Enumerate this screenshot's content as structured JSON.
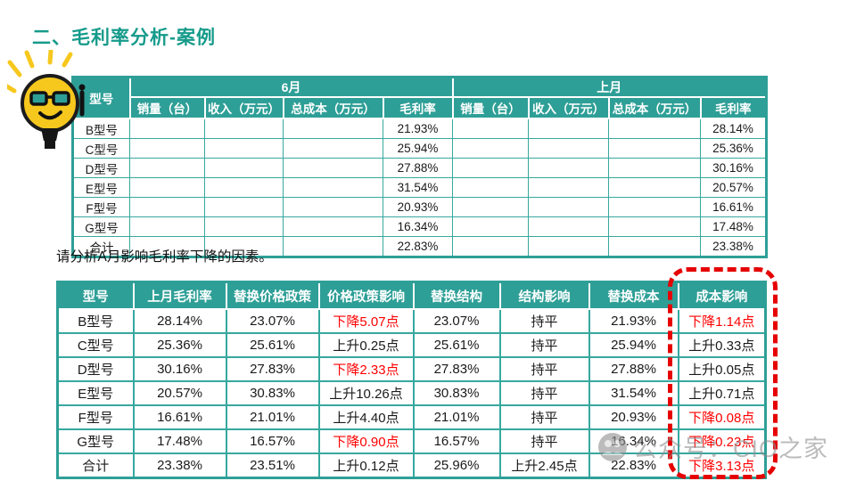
{
  "slide": {
    "title": "二、毛利率分析-案例",
    "prompt": "请分析A月影响毛利率下降的因素。",
    "watermark": "公众号：CIO之家"
  },
  "colors": {
    "accent_teal": "#169b8b",
    "header_teal": "#2e9f97",
    "grid_teal": "#36a89f",
    "alert_red": "#ff0000",
    "bulb_yellow": "#f6c81e"
  },
  "table1": {
    "corner_header": "型号",
    "groups": [
      {
        "label": "6月"
      },
      {
        "label": "上月"
      }
    ],
    "sub_headers": [
      "销量（台）",
      "收入（万元）",
      "总成本（万元）",
      "毛利率"
    ],
    "rows": [
      [
        "B型号",
        "",
        "",
        "",
        "21.93%",
        "",
        "",
        "",
        "28.14%"
      ],
      [
        "C型号",
        "",
        "",
        "",
        "25.94%",
        "",
        "",
        "",
        "25.36%"
      ],
      [
        "D型号",
        "",
        "",
        "",
        "27.88%",
        "",
        "",
        "",
        "30.16%"
      ],
      [
        "E型号",
        "",
        "",
        "",
        "31.54%",
        "",
        "",
        "",
        "20.57%"
      ],
      [
        "F型号",
        "",
        "",
        "",
        "20.93%",
        "",
        "",
        "",
        "16.61%"
      ],
      [
        "G型号",
        "",
        "",
        "",
        "16.34%",
        "",
        "",
        "",
        "17.48%"
      ],
      [
        "合计",
        "",
        "",
        "",
        "22.83%",
        "",
        "",
        "",
        "23.38%"
      ]
    ]
  },
  "table2": {
    "headers": [
      "型号",
      "上月毛利率",
      "替换价格政策",
      "价格政策影响",
      "替换结构",
      "结构影响",
      "替换成本",
      "成本影响"
    ],
    "rows": [
      [
        {
          "text": "B型号"
        },
        {
          "text": "28.14%"
        },
        {
          "text": "23.07%"
        },
        {
          "text": "下降5.07点",
          "red": true
        },
        {
          "text": "23.07%"
        },
        {
          "text": "持平"
        },
        {
          "text": "21.93%"
        },
        {
          "text": "下降1.14点",
          "red": true
        }
      ],
      [
        {
          "text": "C型号"
        },
        {
          "text": "25.36%"
        },
        {
          "text": "25.61%"
        },
        {
          "text": "上升0.25点"
        },
        {
          "text": "25.61%"
        },
        {
          "text": "持平"
        },
        {
          "text": "25.94%"
        },
        {
          "text": "上升0.33点"
        }
      ],
      [
        {
          "text": "D型号"
        },
        {
          "text": "30.16%"
        },
        {
          "text": "27.83%"
        },
        {
          "text": "下降2.33点",
          "red": true
        },
        {
          "text": "27.83%"
        },
        {
          "text": "持平"
        },
        {
          "text": "27.88%"
        },
        {
          "text": "上升0.05点"
        }
      ],
      [
        {
          "text": "E型号"
        },
        {
          "text": "20.57%"
        },
        {
          "text": "30.83%"
        },
        {
          "text": "上升10.26点"
        },
        {
          "text": "30.83%"
        },
        {
          "text": "持平"
        },
        {
          "text": "31.54%"
        },
        {
          "text": "上升0.71点"
        }
      ],
      [
        {
          "text": "F型号"
        },
        {
          "text": "16.61%"
        },
        {
          "text": "21.01%"
        },
        {
          "text": "上升4.40点"
        },
        {
          "text": "21.01%"
        },
        {
          "text": "持平"
        },
        {
          "text": "20.93%"
        },
        {
          "text": "下降0.08点",
          "red": true
        }
      ],
      [
        {
          "text": "G型号"
        },
        {
          "text": "17.48%"
        },
        {
          "text": "16.57%"
        },
        {
          "text": "下降0.90点",
          "red": true
        },
        {
          "text": "16.57%"
        },
        {
          "text": "持平"
        },
        {
          "text": "16.34%"
        },
        {
          "text": "下降0.23点",
          "red": true
        }
      ],
      [
        {
          "text": "合计"
        },
        {
          "text": "23.38%"
        },
        {
          "text": "23.51%"
        },
        {
          "text": "上升0.12点"
        },
        {
          "text": "25.96%"
        },
        {
          "text": "上升2.45点"
        },
        {
          "text": "22.83%"
        },
        {
          "text": "下降3.13点",
          "red": true
        }
      ]
    ]
  }
}
